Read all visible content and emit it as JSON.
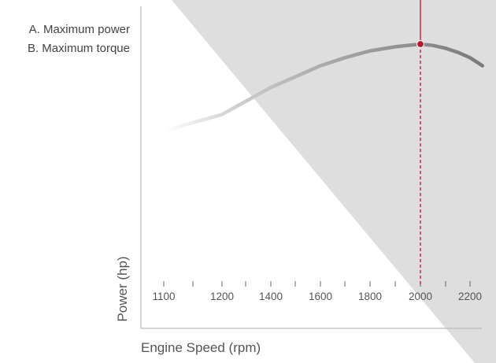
{
  "chart_data": {
    "type": "line",
    "xlabel": "Engine Speed (rpm)",
    "ylabel": "Power (hp)",
    "legend": [
      "A. Maximum power",
      "B. Maximum torque"
    ],
    "x_ticks": [
      1100,
      1200,
      1400,
      1600,
      1800,
      2000,
      2200
    ],
    "xlim": [
      1100,
      2250
    ],
    "series": [
      {
        "x": [
          1100,
          1200,
          1300,
          1400,
          1500,
          1600,
          1700,
          1800,
          1900,
          2000,
          2050,
          2100,
          2150,
          2200,
          2250
        ],
        "y": [
          0.68,
          0.74,
          0.79,
          0.84,
          0.88,
          0.92,
          0.95,
          0.975,
          0.99,
          1.0,
          0.995,
          0.985,
          0.97,
          0.95,
          0.92
        ]
      }
    ],
    "marker": {
      "x": 2000,
      "y": 1.0
    },
    "colors": {
      "curve": "#888888",
      "marker": "#c0102e",
      "shade": "#dedede",
      "axis": "#bbbbbb"
    }
  }
}
